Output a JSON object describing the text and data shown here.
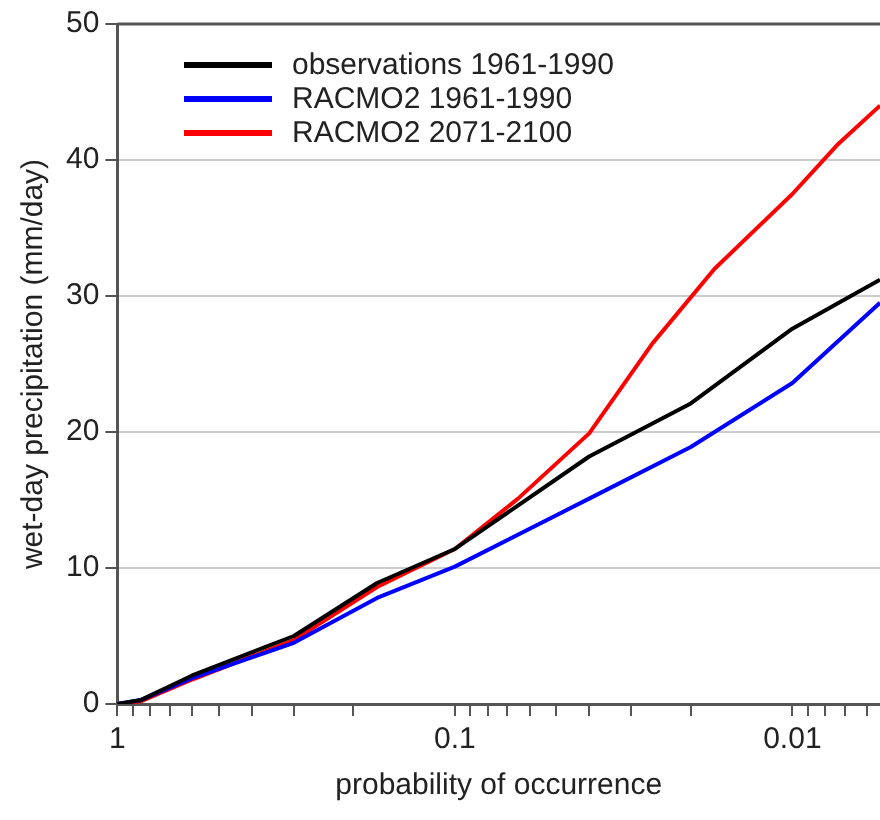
{
  "chart_data": {
    "type": "line",
    "xlabel": "probability of occurrence",
    "ylabel": "wet-day precipitation (mm/day)",
    "log": "x",
    "xlim": [
      1,
      0.0055
    ],
    "xticks": [
      1,
      {
        "value": 0.9,
        "label": null
      },
      {
        "value": 0.8,
        "label": null
      },
      {
        "value": 0.7,
        "label": null
      },
      {
        "value": 0.6,
        "label": null
      },
      {
        "value": 0.5,
        "label": null
      },
      {
        "value": 0.4,
        "label": null
      },
      {
        "value": 0.3,
        "label": null
      },
      {
        "value": 0.2,
        "label": null
      },
      0.1,
      {
        "value": 0.09,
        "label": null
      },
      {
        "value": 0.08,
        "label": null
      },
      {
        "value": 0.07,
        "label": null
      },
      {
        "value": 0.06,
        "label": null
      },
      {
        "value": 0.05,
        "label": null
      },
      {
        "value": 0.04,
        "label": null
      },
      {
        "value": 0.03,
        "label": null
      },
      {
        "value": 0.02,
        "label": null
      },
      0.01,
      {
        "value": 0.009,
        "label": null
      },
      {
        "value": 0.008,
        "label": null
      },
      {
        "value": 0.007,
        "label": null
      },
      {
        "value": 0.006,
        "label": null
      }
    ],
    "ylim": [
      0,
      50
    ],
    "yticks": [
      0,
      10,
      20,
      30,
      40,
      50
    ],
    "grid": "y",
    "legend": "top left",
    "marker": "none",
    "line_style": "solid",
    "series": [
      {
        "name": "observations 1961-1990",
        "color": "#000000",
        "x": [
          1,
          0.85,
          0.6,
          0.3,
          0.17,
          0.1,
          0.04,
          0.02,
          0.01,
          0.0055
        ],
        "values": [
          0,
          0.3,
          2.1,
          5.0,
          8.9,
          11.4,
          18.2,
          22.1,
          27.6,
          31.2
        ]
      },
      {
        "name": "RACMO2 1961-1990",
        "color": "#0000ff",
        "x": [
          1,
          0.85,
          0.6,
          0.3,
          0.17,
          0.1,
          0.04,
          0.02,
          0.01,
          0.0055
        ],
        "values": [
          0,
          0.3,
          1.9,
          4.5,
          7.8,
          10.1,
          15.1,
          18.9,
          23.6,
          29.5
        ]
      },
      {
        "name": "RACMO2 2071-2100",
        "color": "#ff0000",
        "x": [
          1,
          0.85,
          0.6,
          0.3,
          0.17,
          0.1,
          0.065,
          0.04,
          0.026,
          0.017,
          0.01,
          0.0073,
          0.0055
        ],
        "values": [
          0,
          0.2,
          1.8,
          4.7,
          8.6,
          11.4,
          15.1,
          19.9,
          26.5,
          32,
          37.5,
          41.2,
          44
        ]
      }
    ]
  }
}
